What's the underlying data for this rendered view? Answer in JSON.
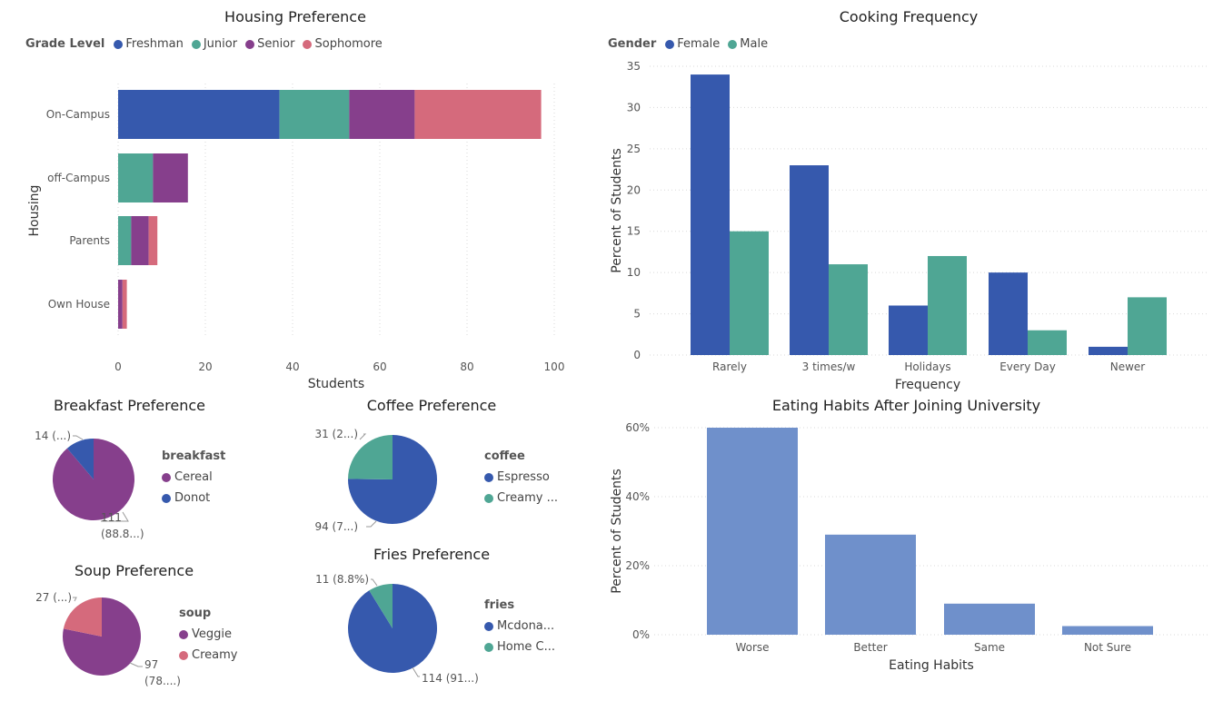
{
  "colors": {
    "freshman": "#3659ad",
    "junior": "#4fa694",
    "senior": "#863f8c",
    "sophomore": "#d56a7c",
    "female": "#3659ad",
    "male": "#4fa694",
    "eating": "#6f90cb",
    "grid": "#d9d9d9",
    "axis_text": "#555555"
  },
  "chart_data": [
    {
      "id": "housing",
      "type": "bar",
      "orientation": "horizontal",
      "stacked": true,
      "title": "Housing Preference",
      "legend_title": "Grade Level",
      "xlabel": "Students",
      "ylabel": "Housing",
      "xlim": [
        0,
        100
      ],
      "xticks": [
        "0",
        "20",
        "40",
        "60",
        "80",
        "100"
      ],
      "categories": [
        "On-Campus",
        "off-Campus",
        "Parents",
        "Own House"
      ],
      "series": [
        {
          "name": "Freshman",
          "color": "#3659ad",
          "values": [
            37,
            0,
            0,
            0
          ]
        },
        {
          "name": "Junior",
          "color": "#4fa694",
          "values": [
            16,
            8,
            3,
            0
          ]
        },
        {
          "name": "Senior",
          "color": "#863f8c",
          "values": [
            15,
            8,
            4,
            1
          ]
        },
        {
          "name": "Sophomore",
          "color": "#d56a7c",
          "values": [
            29,
            0,
            2,
            1
          ]
        }
      ]
    },
    {
      "id": "cooking",
      "type": "bar",
      "grouped": true,
      "title": "Cooking Frequency",
      "legend_title": "Gender",
      "xlabel": "Frequency",
      "ylabel": "Percent of Students",
      "ylim": [
        0,
        35
      ],
      "yticks": [
        "0",
        "5",
        "10",
        "15",
        "20",
        "25",
        "30",
        "35"
      ],
      "categories": [
        "Rarely",
        "3 times/w",
        "Holidays",
        "Every Day",
        "Newer"
      ],
      "series": [
        {
          "name": "Female",
          "color": "#3659ad",
          "values": [
            34,
            23,
            6,
            10,
            1
          ]
        },
        {
          "name": "Male",
          "color": "#4fa694",
          "values": [
            15,
            11,
            12,
            3,
            7
          ]
        }
      ]
    },
    {
      "id": "eating",
      "type": "bar",
      "title": "Eating Habits After Joining University",
      "xlabel": "Eating Habits",
      "ylabel": "Percent of Students",
      "ylim": [
        0,
        60
      ],
      "yticks": [
        "0%",
        "20%",
        "40%",
        "60%"
      ],
      "categories": [
        "Worse",
        "Better",
        "Same",
        "Not Sure"
      ],
      "values": [
        60,
        29,
        9,
        2.5
      ]
    },
    {
      "id": "breakfast",
      "type": "pie",
      "title": "Breakfast Preference",
      "legend_title": "breakfast",
      "slices": [
        {
          "name": "Cereal",
          "value": 111,
          "color": "#863f8c",
          "label": [
            "111",
            "(88.8...)"
          ]
        },
        {
          "name": "Donot",
          "value": 14,
          "color": "#3659ad",
          "label": [
            "14 (...)"
          ]
        }
      ]
    },
    {
      "id": "coffee",
      "type": "pie",
      "title": "Coffee Preference",
      "legend_title": "coffee",
      "slices": [
        {
          "name": "Espresso",
          "value": 94,
          "color": "#3659ad",
          "label": [
            "94 (7...)"
          ]
        },
        {
          "name": "Creamy ...",
          "value": 31,
          "color": "#4fa694",
          "label": [
            "31 (2...)"
          ]
        }
      ]
    },
    {
      "id": "soup",
      "type": "pie",
      "title": "Soup Preference",
      "legend_title": "soup",
      "slices": [
        {
          "name": "Veggie",
          "value": 97,
          "color": "#863f8c",
          "label": [
            "97",
            "(78....)"
          ]
        },
        {
          "name": "Creamy",
          "value": 27,
          "color": "#d56a7c",
          "label": [
            "27 (...)"
          ]
        }
      ]
    },
    {
      "id": "fries",
      "type": "pie",
      "title": "Fries Preference",
      "legend_title": "fries",
      "slices": [
        {
          "name": "Mcdona...",
          "value": 114,
          "color": "#3659ad",
          "label": [
            "114 (91...)"
          ]
        },
        {
          "name": "Home C...",
          "value": 11,
          "color": "#4fa694",
          "label": [
            "11 (8.8%)"
          ]
        }
      ]
    }
  ]
}
